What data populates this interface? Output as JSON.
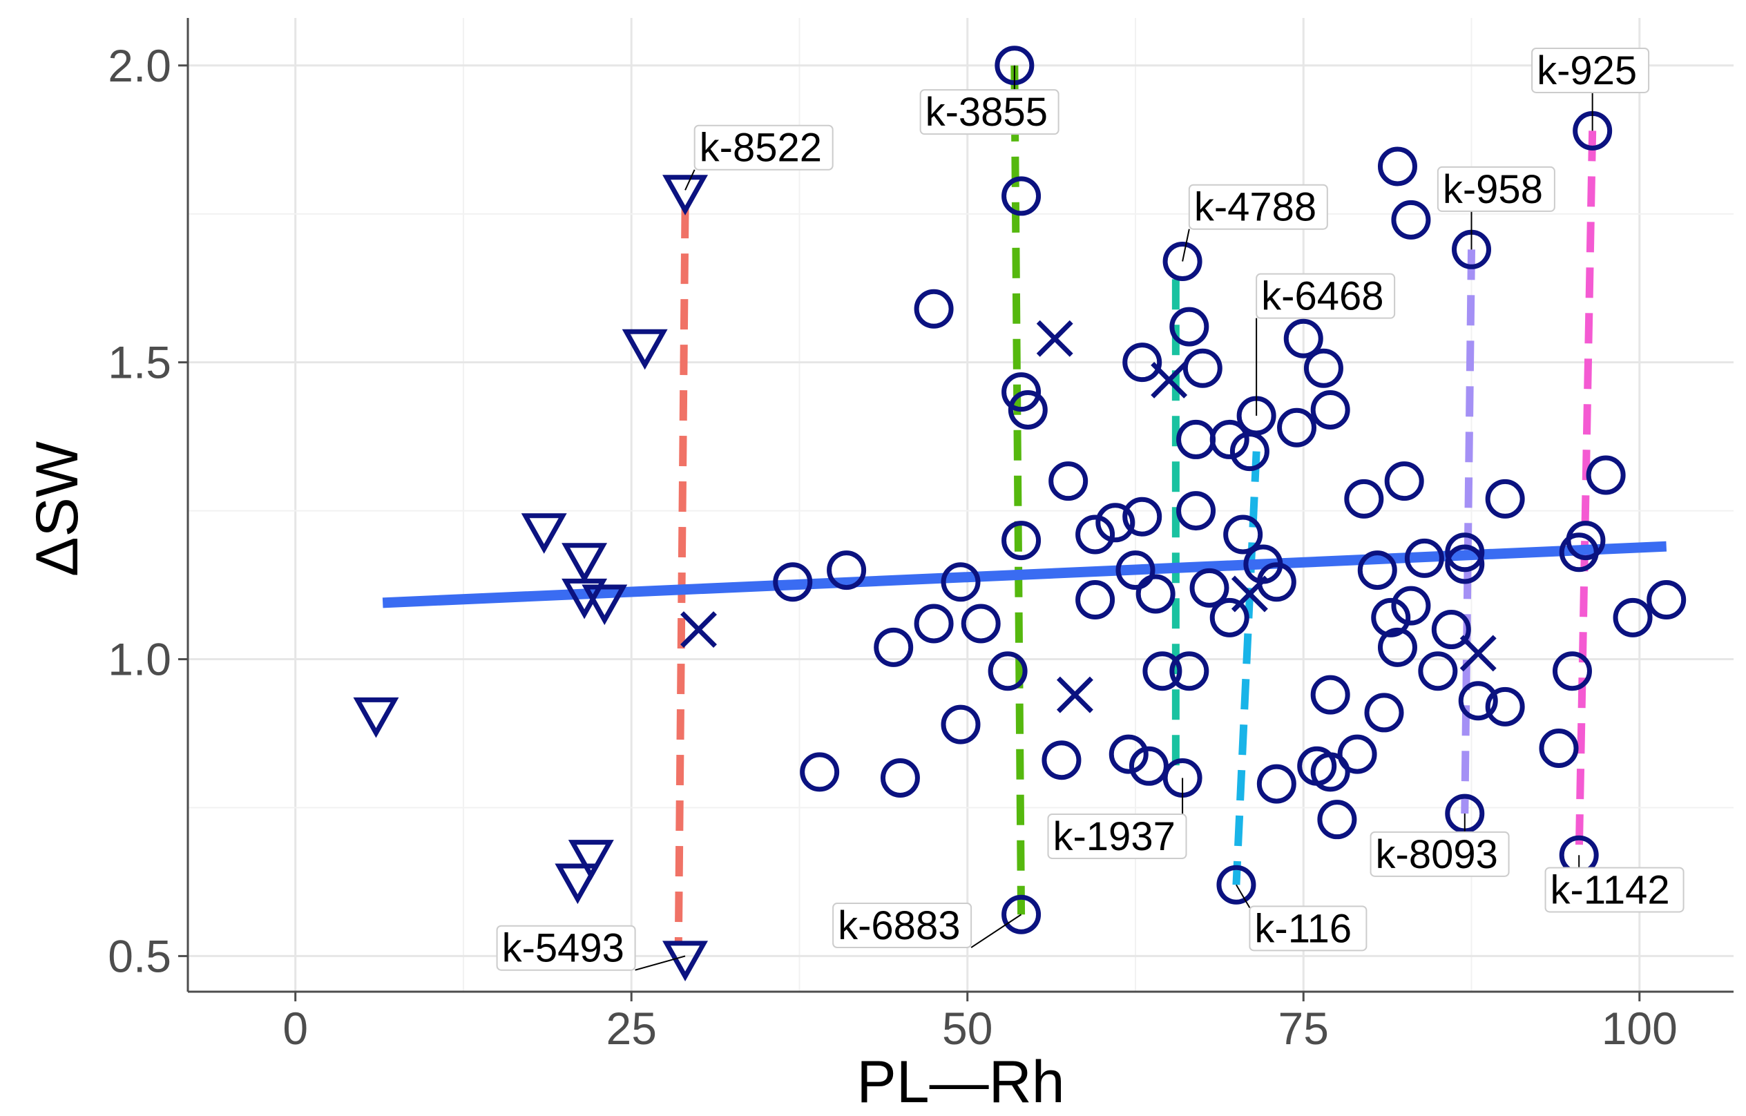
{
  "chart_data": {
    "type": "scatter",
    "title": "",
    "xlabel": "PL—Rh",
    "ylabel": "ΔSW",
    "xlim": [
      -8,
      107
    ],
    "ylim": [
      0.44,
      2.08
    ],
    "x_ticks": [
      0,
      25,
      50,
      75,
      100
    ],
    "y_ticks": [
      0.5,
      1.0,
      1.5,
      2.0
    ],
    "x_tick_labels": [
      "0",
      "25",
      "50",
      "75",
      "100"
    ],
    "y_tick_labels": [
      "0.5",
      "1.0",
      "1.5",
      "2.0"
    ],
    "grid": true,
    "legend": "none",
    "colors": {
      "marker": "#0b1280",
      "trend": "#3a6cf2",
      "segment_red": "#f07266",
      "segment_green": "#55b80e",
      "segment_teal": "#19c2a0",
      "segment_cyan": "#19b4e8",
      "segment_purple": "#a490f5",
      "segment_magenta": "#f45ad2"
    },
    "trend_line": {
      "x": [
        6.5,
        102
      ],
      "y": [
        1.095,
        1.19
      ]
    },
    "series": [
      {
        "name": "triangles",
        "marker": "triangle-down",
        "points": [
          [
            6,
            0.91
          ],
          [
            18.5,
            1.22
          ],
          [
            21.5,
            1.17
          ],
          [
            21.5,
            1.11
          ],
          [
            23,
            1.1
          ],
          [
            26,
            1.53
          ],
          [
            29,
            1.79
          ],
          [
            21,
            0.63
          ],
          [
            22,
            0.67
          ],
          [
            29,
            0.5
          ]
        ]
      },
      {
        "name": "crosses",
        "marker": "cross",
        "points": [
          [
            30,
            1.05
          ],
          [
            56.5,
            1.54
          ],
          [
            58,
            0.94
          ],
          [
            65,
            1.47
          ],
          [
            71,
            1.11
          ],
          [
            88,
            1.01
          ]
        ]
      },
      {
        "name": "circles",
        "marker": "circle",
        "points": [
          [
            53.5,
            2.0
          ],
          [
            54,
            1.78
          ],
          [
            54,
            1.45
          ],
          [
            54.5,
            1.42
          ],
          [
            54,
            1.2
          ],
          [
            53,
            0.98
          ],
          [
            54,
            0.57
          ],
          [
            47.5,
            1.59
          ],
          [
            37,
            1.13
          ],
          [
            41,
            1.15
          ],
          [
            39,
            0.81
          ],
          [
            44.5,
            1.02
          ],
          [
            45,
            0.8
          ],
          [
            47.5,
            1.06
          ],
          [
            49.5,
            1.13
          ],
          [
            51,
            1.06
          ],
          [
            49.5,
            0.89
          ],
          [
            57.5,
            1.3
          ],
          [
            57,
            0.83
          ],
          [
            59.5,
            1.21
          ],
          [
            61,
            1.23
          ],
          [
            63,
            1.24
          ],
          [
            62.5,
            1.15
          ],
          [
            59.5,
            1.1
          ],
          [
            64,
            1.11
          ],
          [
            62,
            0.84
          ],
          [
            63.5,
            0.82
          ],
          [
            64.5,
            0.98
          ],
          [
            63,
            1.5
          ],
          [
            66,
            0.8
          ],
          [
            66,
            1.67
          ],
          [
            66.5,
            1.56
          ],
          [
            67.5,
            1.49
          ],
          [
            67,
            1.37
          ],
          [
            67,
            1.25
          ],
          [
            66.5,
            0.98
          ],
          [
            68,
            1.12
          ],
          [
            69.5,
            1.37
          ],
          [
            71,
            1.35
          ],
          [
            71.5,
            1.41
          ],
          [
            70.5,
            1.21
          ],
          [
            69.5,
            1.07
          ],
          [
            72,
            1.16
          ],
          [
            73,
            1.13
          ],
          [
            70,
            0.62
          ],
          [
            73,
            0.79
          ],
          [
            74.5,
            1.39
          ],
          [
            75,
            1.54
          ],
          [
            76.5,
            1.49
          ],
          [
            77,
            1.42
          ],
          [
            77,
            0.94
          ],
          [
            76,
            0.82
          ],
          [
            77,
            0.81
          ],
          [
            77.5,
            0.73
          ],
          [
            79,
            0.84
          ],
          [
            79.5,
            1.27
          ],
          [
            80.5,
            1.15
          ],
          [
            81,
            0.91
          ],
          [
            81.5,
            1.07
          ],
          [
            82,
            1.02
          ],
          [
            83,
            1.09
          ],
          [
            82,
            1.83
          ],
          [
            83,
            1.74
          ],
          [
            82.5,
            1.3
          ],
          [
            84,
            1.17
          ],
          [
            85,
            0.98
          ],
          [
            86,
            1.05
          ],
          [
            87,
            1.18
          ],
          [
            87,
            1.16
          ],
          [
            88,
            0.93
          ],
          [
            87,
            0.74
          ],
          [
            87.5,
            1.69
          ],
          [
            90,
            1.27
          ],
          [
            90,
            0.92
          ],
          [
            94,
            0.85
          ],
          [
            95,
            0.98
          ],
          [
            95.5,
            1.18
          ],
          [
            96,
            1.2
          ],
          [
            95.5,
            0.67
          ],
          [
            96.5,
            1.89
          ],
          [
            97.5,
            1.31
          ],
          [
            99.5,
            1.07
          ],
          [
            102,
            1.1
          ]
        ]
      }
    ],
    "segments": [
      {
        "color_key": "segment_red",
        "x1": 29,
        "y1": 1.76,
        "x2": 28.5,
        "y2": 0.52
      },
      {
        "color_key": "segment_green",
        "x1": 53.5,
        "y1": 2.0,
        "x2": 54,
        "y2": 0.57
      },
      {
        "color_key": "segment_teal",
        "x1": 65.5,
        "y1": 1.64,
        "x2": 65.5,
        "y2": 0.8
      },
      {
        "color_key": "segment_cyan",
        "x1": 71.5,
        "y1": 1.35,
        "x2": 70,
        "y2": 0.62
      },
      {
        "color_key": "segment_purple",
        "x1": 87.5,
        "y1": 1.69,
        "x2": 87,
        "y2": 0.74
      },
      {
        "color_key": "segment_magenta",
        "x1": 96.5,
        "y1": 1.89,
        "x2": 95.5,
        "y2": 0.67
      }
    ],
    "annotations": [
      {
        "text": "k-8522",
        "x": 29,
        "y": 1.79,
        "lx": 29.7,
        "ly": 1.85
      },
      {
        "text": "k-3855",
        "x": 53.5,
        "y": 2.0,
        "lx": 46.5,
        "ly": 1.91
      },
      {
        "text": "k-4788",
        "x": 66,
        "y": 1.67,
        "lx": 66.5,
        "ly": 1.75
      },
      {
        "text": "k-6468",
        "x": 71.5,
        "y": 1.41,
        "lx": 71.5,
        "ly": 1.6
      },
      {
        "text": "k-958",
        "x": 87.5,
        "y": 1.69,
        "lx": 85,
        "ly": 1.78
      },
      {
        "text": "k-925",
        "x": 96.5,
        "y": 1.89,
        "lx": 92,
        "ly": 1.98
      },
      {
        "text": "k-5493",
        "x": 29,
        "y": 0.5,
        "lx": 15,
        "ly": 0.502
      },
      {
        "text": "k-6883",
        "x": 54,
        "y": 0.57,
        "lx": 40,
        "ly": 0.54
      },
      {
        "text": "k-1937",
        "x": 66,
        "y": 0.8,
        "lx": 56,
        "ly": 0.69
      },
      {
        "text": "k-116",
        "x": 70,
        "y": 0.62,
        "lx": 71,
        "ly": 0.535
      },
      {
        "text": "k-8093",
        "x": 87,
        "y": 0.74,
        "lx": 80,
        "ly": 0.66
      },
      {
        "text": "k-1142",
        "x": 95.5,
        "y": 0.67,
        "lx": 93,
        "ly": 0.6
      }
    ]
  }
}
